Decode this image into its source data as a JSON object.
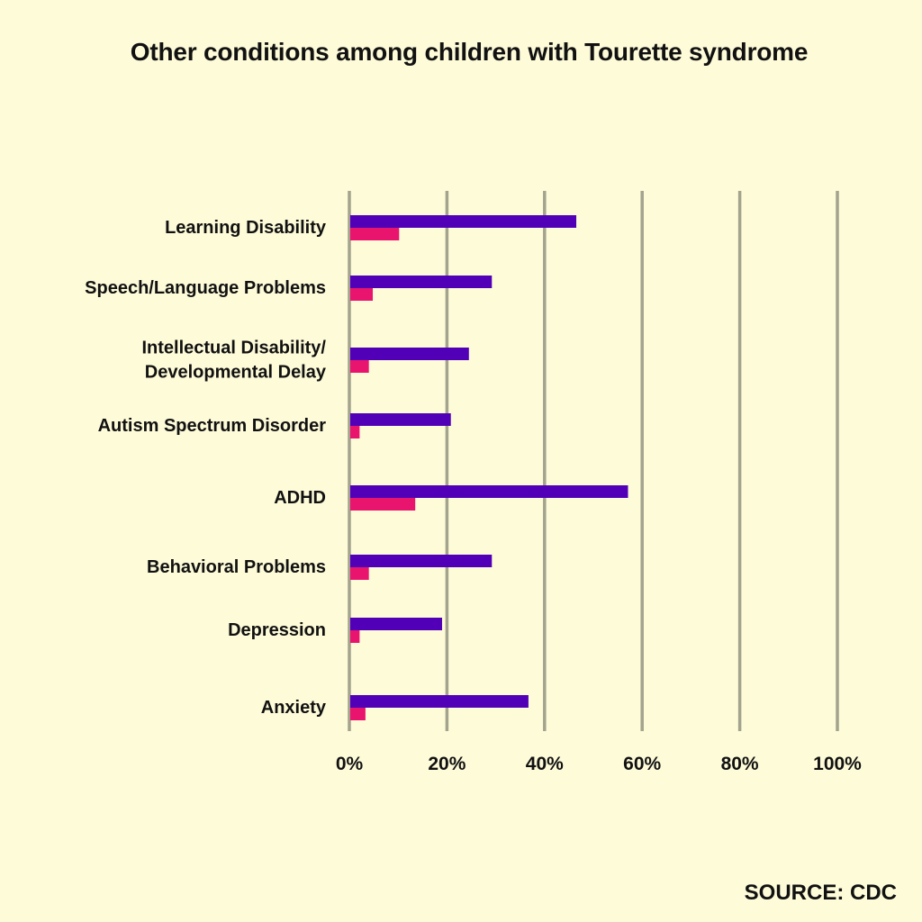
{
  "title": "Other conditions among children with Tourette syndrome",
  "source": "SOURCE: CDC",
  "colors": {
    "background": "#FEFBD9",
    "series_primary": "#5200B8",
    "series_secondary": "#E8146E",
    "gridline": "#A3A38E"
  },
  "chart_data": {
    "type": "bar",
    "orientation": "horizontal",
    "title": "Other conditions among children with Tourette syndrome",
    "categories": [
      [
        "Learning Disability"
      ],
      [
        "Speech/Language Problems"
      ],
      [
        "Intellectual Disability/",
        "Developmental Delay"
      ],
      [
        "Autism Spectrum Disorder"
      ],
      [
        "ADHD"
      ],
      [
        "Behavioral Problems"
      ],
      [
        "Depression"
      ],
      [
        "Anxiety"
      ]
    ],
    "series": [
      {
        "color": "#5200B8",
        "values": [
          46.5,
          29.2,
          24.5,
          20.8,
          57.1,
          29.2,
          19.0,
          36.7
        ]
      },
      {
        "color": "#E8146E",
        "values": [
          10.2,
          4.8,
          4.0,
          2.1,
          13.5,
          4.0,
          2.1,
          3.3
        ]
      }
    ],
    "xlim": [
      0,
      100
    ],
    "x_ticks": [
      0,
      20,
      40,
      60,
      80,
      100
    ],
    "x_tick_labels": [
      "0%",
      "20%",
      "40%",
      "60%",
      "80%",
      "100%"
    ],
    "grid": true,
    "legend": "none"
  }
}
